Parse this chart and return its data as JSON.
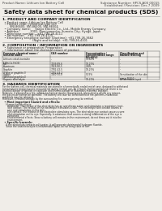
{
  "bg_color": "#f0ede8",
  "header_left": "Product Name: Lithium Ion Battery Cell",
  "header_right_line1": "Substance Number: HPCS-A00 00015",
  "header_right_line2": "Established / Revision: Dec.7 2009",
  "title": "Safety data sheet for chemical products (SDS)",
  "section1_title": "1. PRODUCT AND COMPANY IDENTIFICATION",
  "section1_lines": [
    "  • Product name: Lithium Ion Battery Cell",
    "  • Product code: Cylindrical-type cell",
    "        SNI-86600, SNI-86500, SNI-86504",
    "  • Company name:     Sanyo Electric Co., Ltd., Mobile Energy Company",
    "  • Address:            2001, Kamiyamacho, Sumoto-City, Hyogo, Japan",
    "  • Telephone number:   +81-799-26-4111",
    "  • Fax number:   +81-799-26-4120",
    "  • Emergency telephone number (Daytime): +81-799-26-3662",
    "                                 (Night and holiday): +81-799-26-4101"
  ],
  "section2_title": "2. COMPOSITION / INFORMATION ON INGREDIENTS",
  "section2_sub1": "  • Substance or preparation: Preparation",
  "section2_sub2": "  • Information about the chemical nature of product:",
  "col_headers_row1": [
    "Common chemical name /",
    "CAS number",
    "Concentration /",
    "Classification and"
  ],
  "col_headers_row2": [
    "General name",
    "",
    "Concentration range",
    "hazard labeling"
  ],
  "col_headers_row3": [
    "",
    "",
    "[30-60%]",
    ""
  ],
  "table_rows": [
    [
      "Lithium cobalt-tantalite\n(LiMn-Co-FeO4)",
      "-",
      "30-60%",
      "-"
    ],
    [
      "Iron",
      "7439-89-6",
      "10-25%",
      "-"
    ],
    [
      "Aluminum",
      "7429-90-5",
      "2-8%",
      "-"
    ],
    [
      "Graphite\n(Flake or graphite-I)\n(Artificial graphite-I)",
      "7782-42-5\n7782-43-2",
      "10-25%",
      "-"
    ],
    [
      "Copper",
      "7440-50-8",
      "5-15%",
      "Sensitization of the skin\ngroup R43.2"
    ],
    [
      "Organic electrolyte",
      "-",
      "10-20%",
      "Inflammable liquid"
    ]
  ],
  "section3_title": "3. HAZARDS IDENTIFICATION",
  "section3_para1": [
    "For the battery cell, chemical materials are stored in a hermetically sealed metal case, designed to withstand",
    "temperatures and pressures encountered during normal use. As a result, during normal-use, there is no",
    "physical danger of ignition or explosion and thermo-danger of hazardous materials leakage).",
    "However, if exposed to a fire, added mechanical shocks, decomposed, when electro where any misuse,",
    "the gas inside cannot be operated. The battery cell case will be breached of fire-patterns, hazardous",
    "materials may be released.",
    "Moreover, if heated strongly by the surrounding fire, some gas may be emitted."
  ],
  "section3_bullet1_title": "  • Most important hazard and effects:",
  "section3_bullet1_lines": [
    "     Human health effects:",
    "       Inhalation: The release of the electrolyte has an anesthesia action and stimulates a respiratory tract.",
    "       Skin contact: The release of the electrolyte stimulates a skin. The electrolyte skin contact causes a",
    "       sore and stimulation on the skin.",
    "       Eye contact: The release of the electrolyte stimulates eyes. The electrolyte eye contact causes a sore",
    "       and stimulation on the eye. Especially, a substance that causes a strong inflammation of the eye is",
    "       contained.",
    "       Environmental effects: Since a battery cell remains in the environment, do not throw out it into the",
    "       environment."
  ],
  "section3_bullet2_title": "  • Specific hazards:",
  "section3_bullet2_lines": [
    "     If the electrolyte contacts with water, it will generate detrimental hydrogen fluoride.",
    "     Since the lead electrolyte is inflammable liquid, do not bring close to fire."
  ],
  "line_color": "#999999",
  "text_color": "#222222",
  "header_text_color": "#444444"
}
